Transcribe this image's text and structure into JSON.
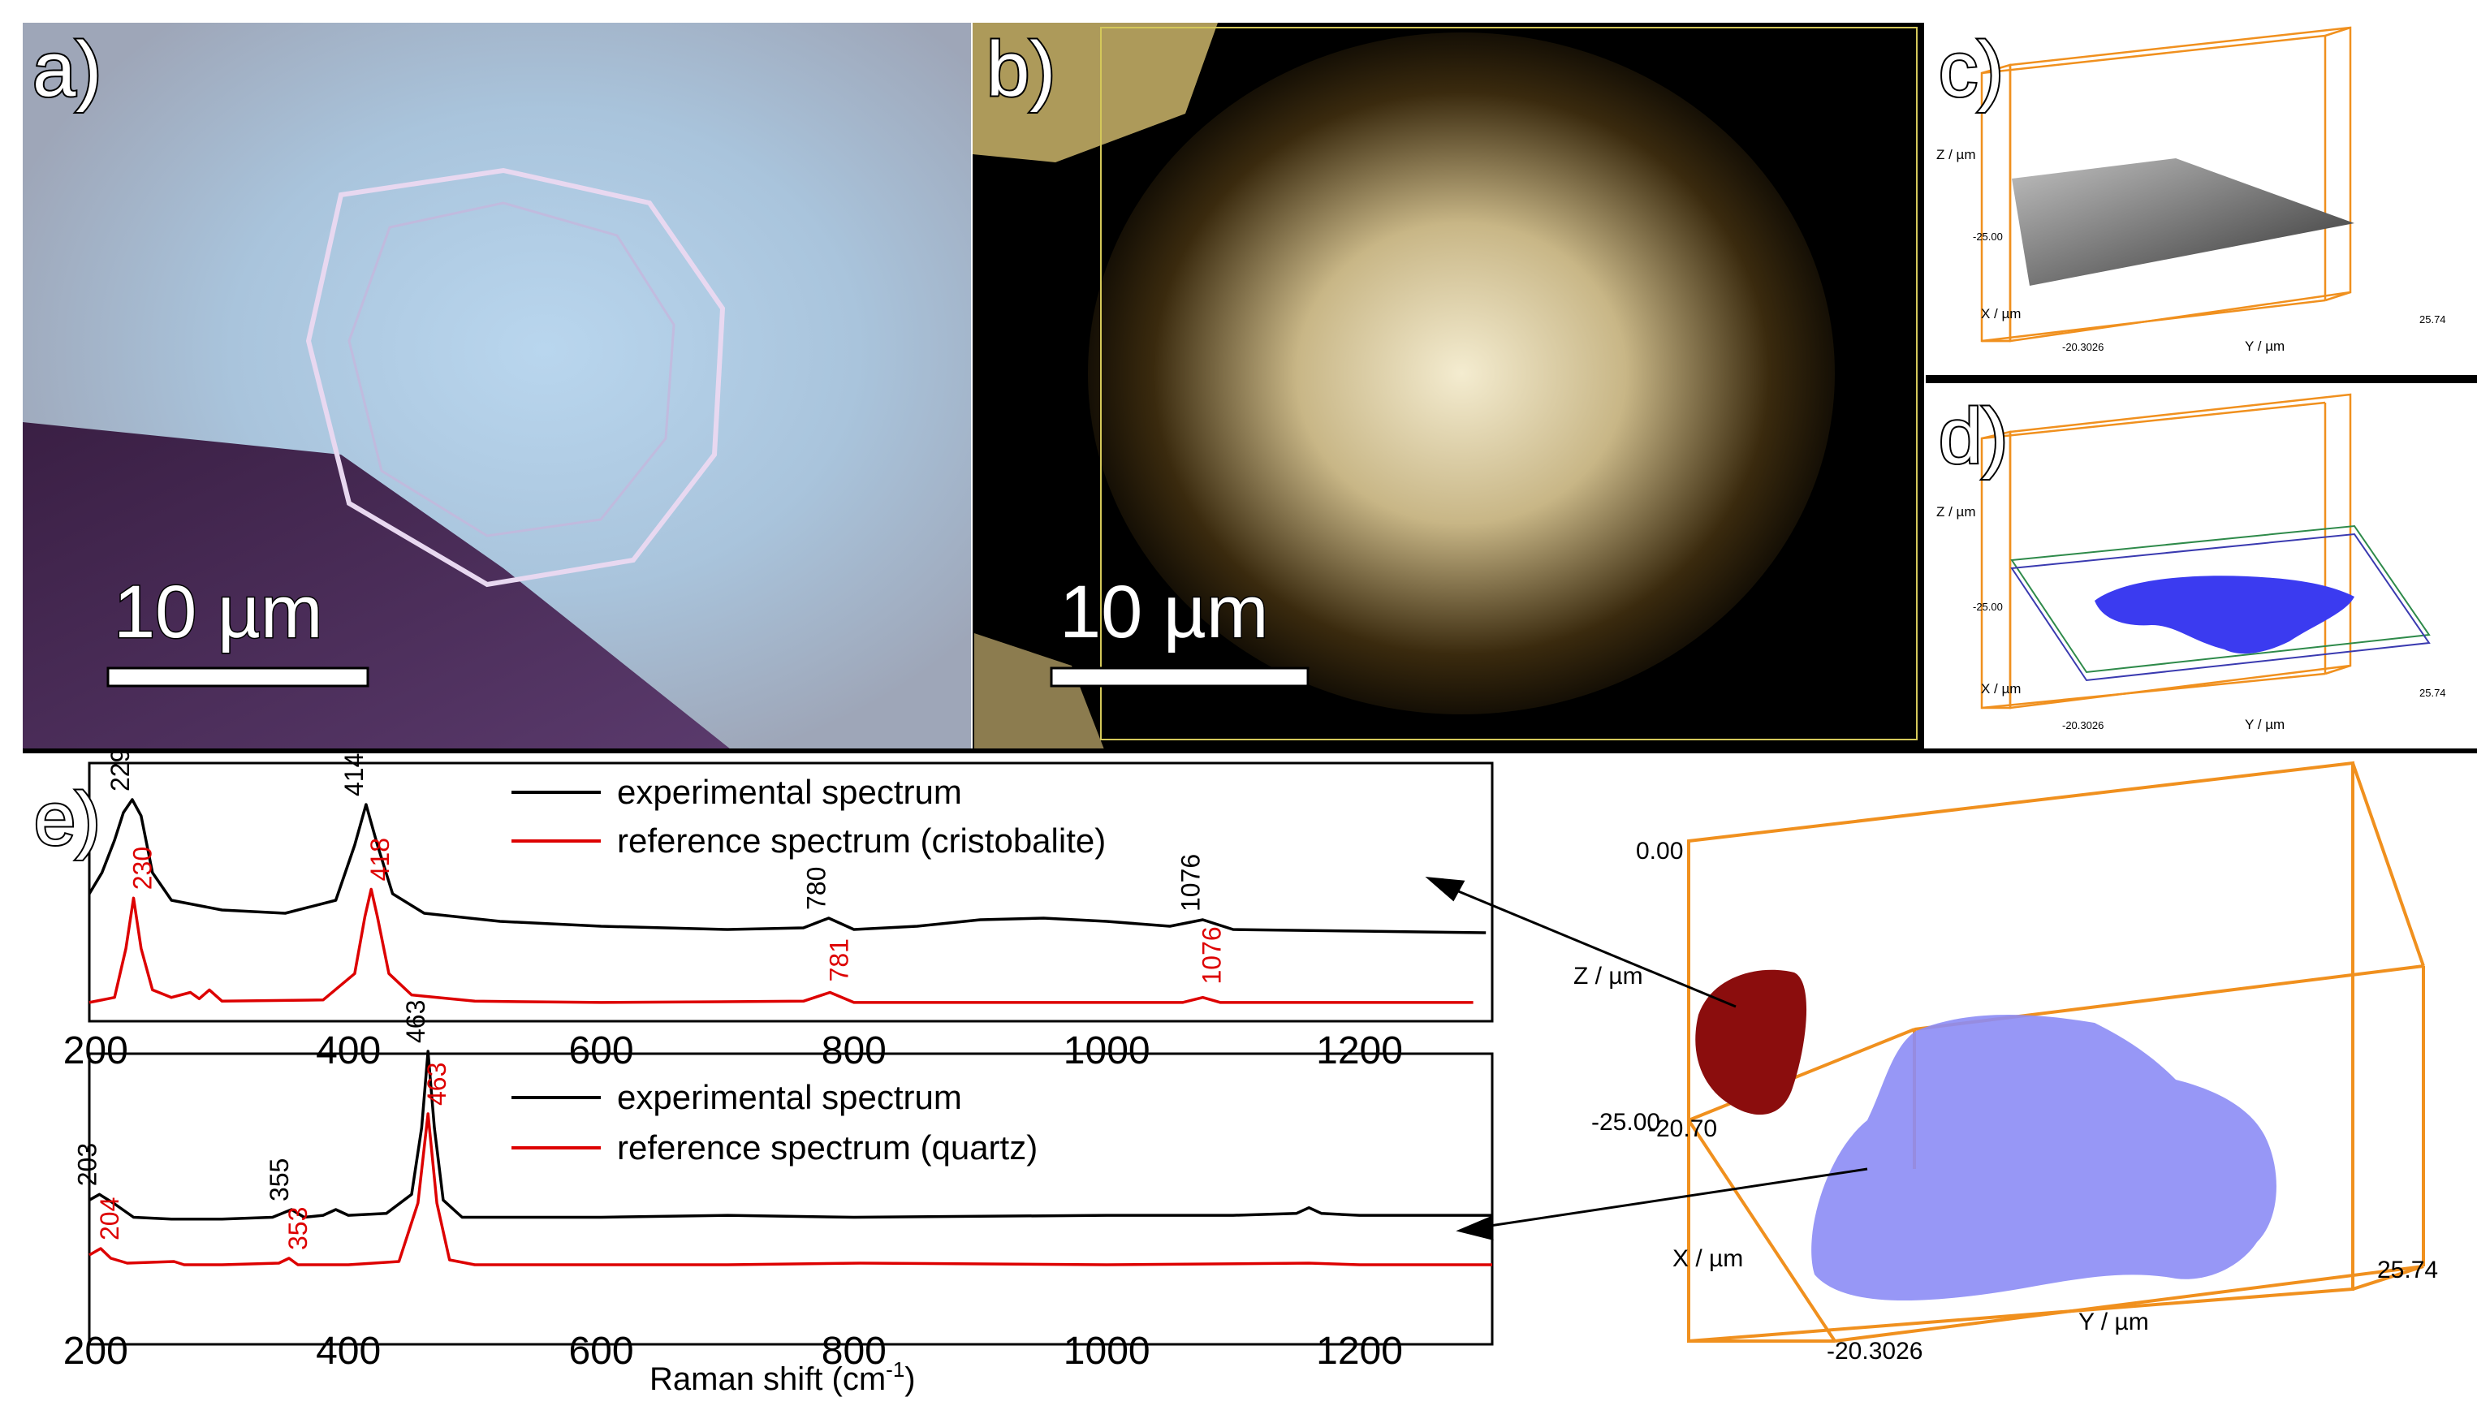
{
  "panels": {
    "a": {
      "label": "a)",
      "scale_text": "10 µm"
    },
    "b": {
      "label": "b)",
      "scale_text": "10 µm"
    },
    "c": {
      "label": "c)",
      "z_label": "Z / µm",
      "x_label": "X / µm",
      "y_label": "Y / µm",
      "tick_y_end": "25.74",
      "tick_origin": "-20.3026",
      "tick_z": "-25.00"
    },
    "d": {
      "label": "d)",
      "z_label": "Z / µm",
      "x_label": "X / µm",
      "y_label": "Y / µm",
      "tick_y_end": "25.74",
      "tick_origin": "-20.3026",
      "tick_z": "-25.00"
    },
    "e": {
      "label": "e)"
    },
    "box3d": {
      "z_label": "Z / µm",
      "x_label": "X / µm",
      "y_label": "Y / µm",
      "tick_z_top": "0.00",
      "tick_z_bottom": "-25.00",
      "tick_x_top": "-20.70",
      "tick_y_end": "25.74",
      "tick_origin": "-20.3026"
    }
  },
  "colors": {
    "experimental": "#000000",
    "reference": "#dd0000",
    "box": "#f0901e",
    "cristobalite": "#8b0d0d",
    "quartz": "#8c8cf5"
  },
  "chart_data": [
    {
      "type": "line",
      "title": "",
      "xlabel": "",
      "ylabel": "",
      "xlim": [
        195,
        1305
      ],
      "x_ticks": [
        "200",
        "400",
        "600",
        "800",
        "1000",
        "1200"
      ],
      "series": [
        {
          "name": "experimental spectrum",
          "color": "#000000",
          "x": [
            195,
            205,
            215,
            222,
            229,
            236,
            245,
            260,
            300,
            350,
            390,
            405,
            414,
            423,
            435,
            460,
            520,
            600,
            700,
            760,
            780,
            800,
            850,
            900,
            950,
            1000,
            1050,
            1076,
            1100,
            1200,
            1300
          ],
          "y": [
            0.42,
            0.55,
            0.75,
            0.92,
            1.0,
            0.9,
            0.55,
            0.38,
            0.32,
            0.3,
            0.38,
            0.72,
            0.97,
            0.72,
            0.42,
            0.3,
            0.25,
            0.22,
            0.2,
            0.21,
            0.27,
            0.2,
            0.22,
            0.26,
            0.27,
            0.25,
            0.22,
            0.26,
            0.2,
            0.19,
            0.18
          ]
        },
        {
          "name": "reference spectrum (cristobalite)",
          "color": "#dd0000",
          "x": [
            195,
            215,
            224,
            230,
            236,
            245,
            260,
            275,
            282,
            290,
            300,
            380,
            405,
            413,
            418,
            423,
            432,
            450,
            500,
            600,
            760,
            781,
            800,
            1000,
            1060,
            1076,
            1090,
            1200,
            1290
          ],
          "y": [
            0.02,
            0.06,
            0.45,
            0.85,
            0.45,
            0.12,
            0.06,
            0.1,
            0.05,
            0.12,
            0.03,
            0.04,
            0.25,
            0.7,
            0.92,
            0.7,
            0.25,
            0.08,
            0.03,
            0.02,
            0.03,
            0.1,
            0.02,
            0.02,
            0.02,
            0.06,
            0.02,
            0.02,
            0.02
          ]
        }
      ],
      "legend": [
        "experimental spectrum",
        "reference spectrum (cristobalite)"
      ],
      "peak_labels": [
        {
          "x": 229,
          "text": "229",
          "color": "#000000",
          "y": 1.0
        },
        {
          "x": 230,
          "text": "230",
          "color": "#dd0000",
          "y": 0.85
        },
        {
          "x": 414,
          "text": "414",
          "color": "#000000",
          "y": 0.97
        },
        {
          "x": 418,
          "text": "418",
          "color": "#dd0000",
          "y": 0.92
        },
        {
          "x": 780,
          "text": "780",
          "color": "#000000",
          "y": 0.27
        },
        {
          "x": 781,
          "text": "781",
          "color": "#dd0000",
          "y": 0.12
        },
        {
          "x": 1076,
          "text": "1076",
          "color": "#000000",
          "y": 0.26
        },
        {
          "x": 1076,
          "text": "1076",
          "color": "#dd0000",
          "y": 0.1
        }
      ]
    },
    {
      "type": "line",
      "title": "",
      "xlabel": "Raman shift (cm-1)",
      "ylabel": "",
      "xlim": [
        195,
        1305
      ],
      "x_ticks": [
        "200",
        "400",
        "600",
        "800",
        "1000",
        "1200"
      ],
      "series": [
        {
          "name": "experimental spectrum",
          "color": "#000000",
          "x": [
            195,
            203,
            215,
            230,
            260,
            300,
            340,
            355,
            365,
            380,
            390,
            400,
            430,
            450,
            458,
            463,
            468,
            475,
            490,
            600,
            700,
            800,
            1000,
            1100,
            1150,
            1160,
            1170,
            1200,
            1305
          ],
          "y": [
            0.22,
            0.25,
            0.2,
            0.13,
            0.12,
            0.12,
            0.13,
            0.17,
            0.13,
            0.14,
            0.17,
            0.14,
            0.15,
            0.25,
            0.6,
            1.0,
            0.6,
            0.22,
            0.13,
            0.13,
            0.14,
            0.13,
            0.14,
            0.14,
            0.15,
            0.18,
            0.15,
            0.14,
            0.14
          ]
        },
        {
          "name": "reference spectrum (quartz)",
          "color": "#dd0000",
          "x": [
            195,
            204,
            212,
            225,
            262,
            270,
            300,
            345,
            353,
            360,
            400,
            440,
            455,
            463,
            470,
            480,
            500,
            700,
            805,
            1000,
            1160,
            1200,
            1305
          ],
          "y": [
            0.08,
            0.12,
            0.06,
            0.03,
            0.04,
            0.02,
            0.02,
            0.03,
            0.06,
            0.02,
            0.02,
            0.04,
            0.4,
            0.95,
            0.4,
            0.05,
            0.02,
            0.02,
            0.03,
            0.02,
            0.03,
            0.02,
            0.02
          ]
        }
      ],
      "legend": [
        "experimental spectrum",
        "reference spectrum (quartz)"
      ],
      "peak_labels": [
        {
          "x": 203,
          "text": "203",
          "color": "#000000",
          "y": 0.25
        },
        {
          "x": 204,
          "text": "204",
          "color": "#dd0000",
          "y": 0.12
        },
        {
          "x": 353,
          "text": "353",
          "color": "#dd0000",
          "y": 0.06
        },
        {
          "x": 355,
          "text": "355",
          "color": "#000000",
          "y": 0.17
        },
        {
          "x": 463,
          "text": "463",
          "color": "#000000",
          "y": 1.0
        },
        {
          "x": 463,
          "text": "463",
          "color": "#dd0000",
          "y": 0.95
        }
      ]
    }
  ]
}
